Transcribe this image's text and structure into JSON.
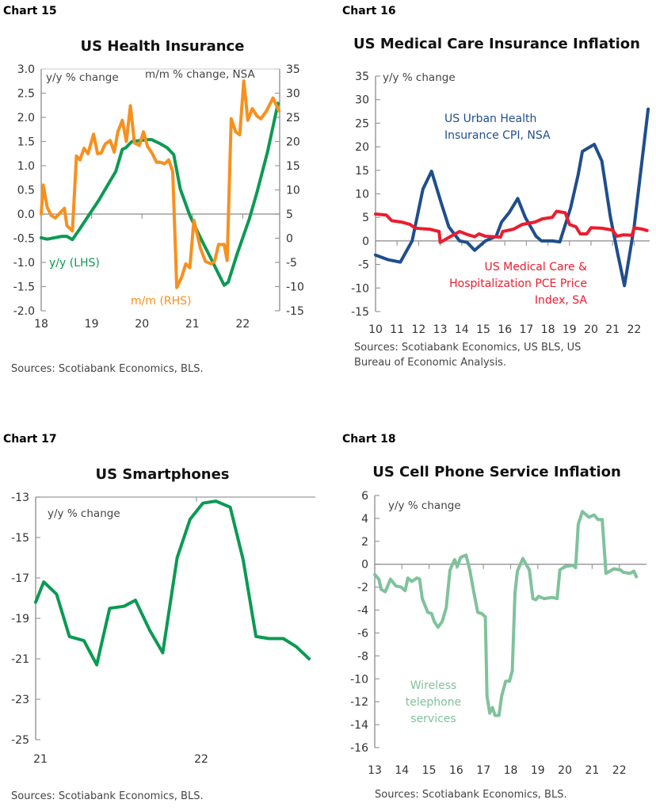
{
  "chart_data": [
    {
      "chart_label": "Chart 15",
      "type": "line",
      "title": "US Health Insurance",
      "ylabel": "y/y % change",
      "y2label": "m/m % change, NSA",
      "ylim": [
        -2,
        3
      ],
      "y2lim": [
        -15,
        35
      ],
      "yticks": [
        "3.0",
        "2.5",
        "2.0",
        "1.5",
        "1.0",
        "0.5",
        "0.0",
        "-0.5",
        "-1.0",
        "-1.5",
        "-2.0"
      ],
      "y2ticks": [
        "35",
        "30",
        "25",
        "20",
        "15",
        "10",
        "5",
        "0",
        "-5",
        "-10",
        "-15"
      ],
      "xticks": [
        "18",
        "19",
        "20",
        "21",
        "22"
      ],
      "source": "Sources: Scotiabank Economics, BLS.",
      "series": [
        {
          "name": "y/y (LHS)",
          "axis": "left",
          "color": "#0b9a53",
          "x": [
            18.0,
            18.12,
            18.41,
            18.51,
            18.62,
            18.77,
            18.96,
            19.14,
            19.32,
            19.48,
            19.61,
            19.68,
            19.8,
            20.11,
            20.19,
            20.37,
            20.5,
            20.63,
            20.76,
            20.95,
            21.16,
            21.37,
            21.63,
            21.71,
            21.89,
            22.13,
            22.28,
            22.49,
            22.7
          ],
          "values": [
            -0.49,
            -0.52,
            -0.46,
            -0.46,
            -0.53,
            -0.3,
            0.0,
            0.28,
            0.6,
            0.88,
            1.34,
            1.37,
            1.5,
            1.54,
            1.54,
            1.45,
            1.37,
            1.23,
            0.52,
            -0.03,
            -0.49,
            -0.92,
            -1.47,
            -1.41,
            -0.82,
            -0.1,
            0.44,
            1.28,
            2.29
          ]
        },
        {
          "name": "m/m (RHS)",
          "axis": "right",
          "color": "#f7901e",
          "x": [
            18.0,
            18.04,
            18.12,
            18.2,
            18.28,
            18.46,
            18.51,
            18.62,
            18.7,
            18.77,
            18.85,
            18.93,
            19.04,
            19.12,
            19.19,
            19.27,
            19.37,
            19.45,
            19.52,
            19.61,
            19.69,
            19.77,
            19.85,
            19.95,
            20.03,
            20.11,
            20.2,
            20.29,
            20.37,
            20.45,
            20.53,
            20.61,
            20.69,
            20.79,
            20.87,
            20.95,
            21.03,
            21.16,
            21.26,
            21.37,
            21.44,
            21.52,
            21.63,
            21.69,
            21.77,
            21.86,
            21.94,
            22.02,
            22.1,
            22.19,
            22.28,
            22.36,
            22.47,
            22.6,
            22.72
          ],
          "values": [
            5,
            11,
            6.4,
            4.7,
            4.2,
            6.2,
            2.6,
            1.5,
            17,
            16.2,
            18.6,
            17.5,
            21.5,
            17.5,
            17.6,
            19.5,
            20.2,
            17.8,
            22,
            24.4,
            20,
            27.4,
            19.7,
            19.2,
            22,
            19,
            17.6,
            15.7,
            15.7,
            15.4,
            16.2,
            13.8,
            -10.2,
            -8,
            -5.3,
            -6.1,
            3.7,
            -2.1,
            -4.8,
            -5.3,
            -4.8,
            -1.3,
            -1.3,
            -4.6,
            24.7,
            22,
            21.4,
            32.5,
            24.4,
            26.8,
            25.3,
            24.7,
            26.3,
            29,
            26.3
          ]
        }
      ]
    },
    {
      "chart_label": "Chart 16",
      "type": "line",
      "title": "US Medical Care Insurance Inflation",
      "ylabel": "y/y % change",
      "ylim": [
        -15,
        35
      ],
      "yticks": [
        "35",
        "30",
        "25",
        "20",
        "15",
        "10",
        "5",
        "0",
        "-5",
        "-10",
        "-15"
      ],
      "xticks": [
        "10",
        "11",
        "12",
        "13",
        "14",
        "15",
        "16",
        "17",
        "18",
        "19",
        "20",
        "21",
        "22"
      ],
      "source": [
        "Sources: Scotiabank Economics, US BLS, US",
        "Bureau of Economic Analysis."
      ],
      "series": [
        {
          "name": "US Urban Health Insurance CPI, NSA",
          "name_lines": [
            "US Urban Health",
            "Insurance CPI, NSA"
          ],
          "color": "#1f4e8c",
          "x": [
            10.0,
            10.6,
            11.15,
            11.7,
            12.2,
            12.6,
            13.05,
            13.4,
            13.9,
            14.25,
            14.6,
            15.1,
            15.6,
            15.85,
            16.2,
            16.6,
            16.95,
            17.45,
            17.7,
            18.2,
            18.55,
            19.05,
            19.4,
            19.6,
            20.15,
            20.5,
            20.9,
            21.25,
            21.55,
            22.0,
            22.65
          ],
          "values": [
            -3,
            -4,
            -4.5,
            0,
            11,
            14.8,
            8,
            3,
            0,
            -0.3,
            -2,
            0,
            1,
            4,
            6,
            9,
            5,
            1,
            0,
            0,
            -0.2,
            7,
            14,
            19,
            20.5,
            17,
            5,
            -3,
            -9.5,
            3,
            28
          ]
        },
        {
          "name": "US Medical Care & Hospitalization PCE Price Index, SA",
          "name_lines": [
            "US Medical Care &",
            "Hospitalization PCE Price",
            "Index, SA"
          ],
          "color": "#ec1c2e",
          "x": [
            10.0,
            10.5,
            10.75,
            11.2,
            11.6,
            11.85,
            12.5,
            12.95,
            13.0,
            13.5,
            13.9,
            14.3,
            14.6,
            14.8,
            15.1,
            15.8,
            15.9,
            16.4,
            16.8,
            17.4,
            17.75,
            18.2,
            18.4,
            18.8,
            19.0,
            19.3,
            19.5,
            19.8,
            20.0,
            20.5,
            21.0,
            21.2,
            21.5,
            21.9,
            22.0,
            22.4,
            22.6
          ],
          "values": [
            5.7,
            5.5,
            4.3,
            4,
            3.5,
            2.7,
            2.5,
            2,
            -0.3,
            1,
            2,
            1.3,
            0.9,
            1.5,
            1,
            0.8,
            2,
            2.5,
            3.5,
            4,
            4.7,
            5,
            6.3,
            6,
            3.5,
            3,
            1.5,
            1.5,
            2.8,
            2.7,
            2.3,
            1,
            1.3,
            1.2,
            2.8,
            2.5,
            2.2
          ]
        }
      ]
    },
    {
      "chart_label": "Chart 17",
      "type": "line",
      "title": "US Smartphones",
      "ylabel": "y/y % change",
      "ylim": [
        -25,
        -13
      ],
      "yticks": [
        "-13",
        "-15",
        "-17",
        "-19",
        "-21",
        "-23",
        "-25"
      ],
      "xticks": [
        "21",
        "22"
      ],
      "source": "Sources: Scotiabank Economics, BLS.",
      "series": [
        {
          "color": "#0b9a53",
          "x": [
            21.0,
            21.05,
            21.13,
            21.21,
            21.3,
            21.38,
            21.46,
            21.55,
            21.62,
            21.71,
            21.79,
            21.88,
            21.96,
            22.04,
            22.12,
            22.21,
            22.29,
            22.37,
            22.45,
            22.54,
            22.62,
            22.7
          ],
          "values": [
            -18.2,
            -17.2,
            -17.8,
            -19.9,
            -20.1,
            -21.3,
            -18.5,
            -18.4,
            -18.1,
            -19.6,
            -20.7,
            -16.0,
            -14.1,
            -13.3,
            -13.2,
            -13.5,
            -16.1,
            -19.9,
            -20.0,
            -20.0,
            -20.4,
            -21.0
          ]
        }
      ]
    },
    {
      "chart_label": "Chart 18",
      "type": "line",
      "title": "US Cell Phone Service Inflation",
      "ylabel": "y/y % change",
      "ylim": [
        -16,
        6
      ],
      "yticks": [
        "6",
        "4",
        "2",
        "0",
        "-2",
        "-4",
        "-6",
        "-8",
        "-10",
        "-12",
        "-14",
        "-16"
      ],
      "xticks": [
        "13",
        "14",
        "15",
        "16",
        "17",
        "18",
        "19",
        "20",
        "21",
        "22"
      ],
      "source": "Sources: Scotiabank Economics, BLS.",
      "series": [
        {
          "name": "Wireless telephone services",
          "name_lines": [
            "Wireless",
            "telephone",
            "services"
          ],
          "color": "#7fc29b",
          "x": [
            13.0,
            13.15,
            13.24,
            13.39,
            13.58,
            13.78,
            13.97,
            14.12,
            14.22,
            14.36,
            14.56,
            14.65,
            14.75,
            14.95,
            15.09,
            15.19,
            15.33,
            15.48,
            15.63,
            15.77,
            15.94,
            16.04,
            16.16,
            16.36,
            16.5,
            16.65,
            16.79,
            16.94,
            17.07,
            17.13,
            17.23,
            17.33,
            17.43,
            17.57,
            17.67,
            17.82,
            17.96,
            18.06,
            18.16,
            18.25,
            18.45,
            18.69,
            18.82,
            18.93,
            19.03,
            19.23,
            19.52,
            19.71,
            19.81,
            20.0,
            20.3,
            20.39,
            20.49,
            20.64,
            20.88,
            21.07,
            21.22,
            21.37,
            21.51,
            21.8,
            22.05,
            22.14,
            22.39,
            22.53,
            22.63
          ],
          "values": [
            -0.9,
            -1.3,
            -2.2,
            -2.4,
            -1.3,
            -1.9,
            -2.0,
            -2.3,
            -1.2,
            -1.5,
            -1.2,
            -1.3,
            -3.0,
            -4.2,
            -4.3,
            -5.0,
            -5.5,
            -5.0,
            -3.8,
            -0.5,
            0.4,
            -0.2,
            0.6,
            0.8,
            -0.5,
            -2.5,
            -4.2,
            -4.3,
            -4.6,
            -11.5,
            -13.0,
            -12.5,
            -13.2,
            -13.2,
            -11.5,
            -10.2,
            -10.2,
            -9.3,
            -2.5,
            -0.6,
            0.5,
            -0.5,
            -3.0,
            -3.1,
            -2.8,
            -3.0,
            -2.9,
            -3.0,
            -0.5,
            -0.2,
            -0.1,
            -0.3,
            3.5,
            4.6,
            4.1,
            4.3,
            3.9,
            3.9,
            -0.8,
            -0.4,
            -0.5,
            -0.7,
            -0.8,
            -0.6,
            -1.1
          ]
        }
      ]
    }
  ]
}
